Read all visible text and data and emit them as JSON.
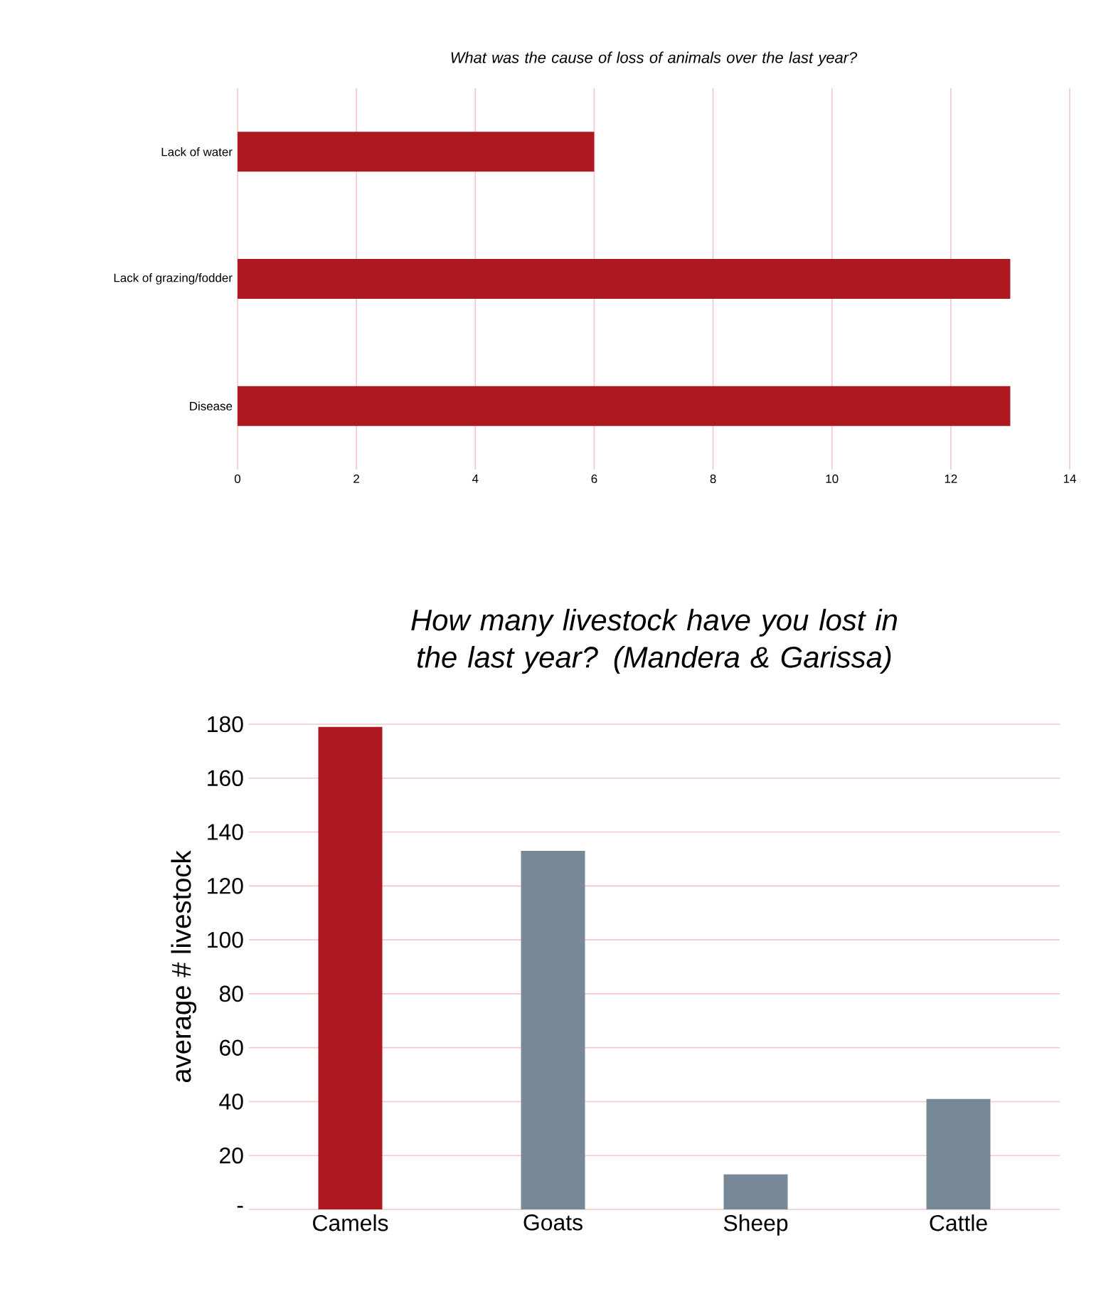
{
  "chart_data": [
    {
      "type": "bar",
      "orientation": "horizontal",
      "title": "What was the cause of loss of animals over the last year?",
      "categories": [
        "Lack of water",
        "Lack of grazing/fodder",
        "Disease"
      ],
      "values": [
        6,
        13,
        13
      ],
      "color": "#ae1820",
      "xlim": [
        0,
        14
      ],
      "xticks": [
        0,
        2,
        4,
        6,
        8,
        10,
        12,
        14
      ],
      "grid": "x"
    },
    {
      "type": "bar",
      "title": "How many livestock have you lost in the last year? (Mandera & Garissa)",
      "ylabel": "average # livestock",
      "categories": [
        "Camels",
        "Goats",
        "Sheep",
        "Cattle"
      ],
      "values": [
        179,
        133,
        13,
        41
      ],
      "colors": [
        "#ae1820",
        "#778896",
        "#778896",
        "#778896"
      ],
      "ylim": [
        0,
        180
      ],
      "yticks": [
        {
          "value": 0,
          "label": "-"
        },
        20,
        40,
        60,
        80,
        100,
        120,
        140,
        160,
        180
      ],
      "grid": "y"
    }
  ]
}
